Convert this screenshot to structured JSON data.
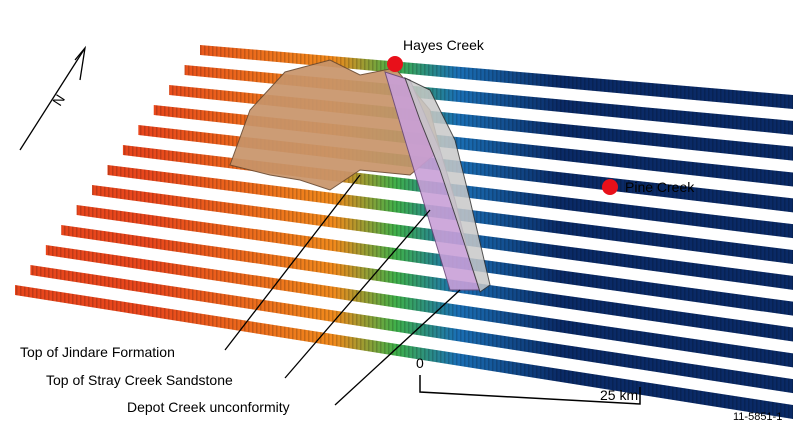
{
  "places": [
    {
      "label": "Hayes Creek"
    },
    {
      "label": "Pine Creek"
    }
  ],
  "horizons": [
    {
      "label": "Top of Jindare Formation"
    },
    {
      "label": "Top of Stray Creek Sandstone"
    },
    {
      "label": "Depot Creek unconformity"
    }
  ],
  "scale_bar": {
    "start": "0",
    "end": "25 km"
  },
  "north": "N",
  "figure_id": "11-5851-1"
}
